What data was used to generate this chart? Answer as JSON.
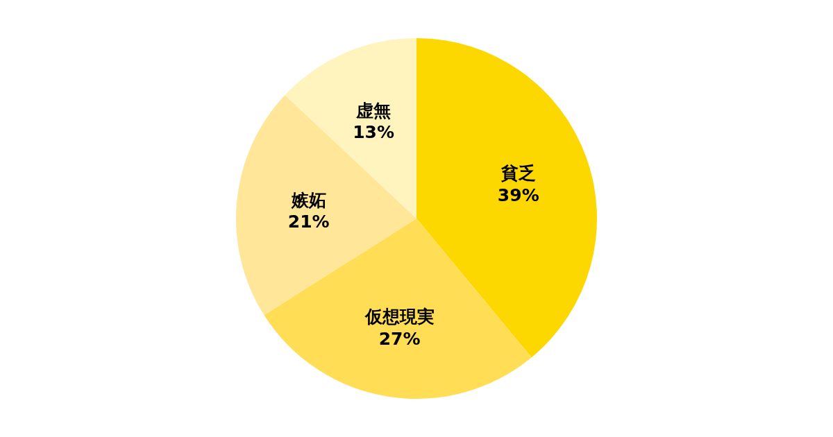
{
  "chart_data": {
    "type": "pie",
    "categories": [
      "貧乏",
      "仮想現実",
      "嫉妬",
      "虚無"
    ],
    "values": [
      39,
      27,
      21,
      13
    ],
    "colors": [
      "#fdd700",
      "#ffdd55",
      "#ffe699",
      "#fff4bd"
    ],
    "value_labels": [
      "39%",
      "27%",
      "21%",
      "13%"
    ]
  }
}
